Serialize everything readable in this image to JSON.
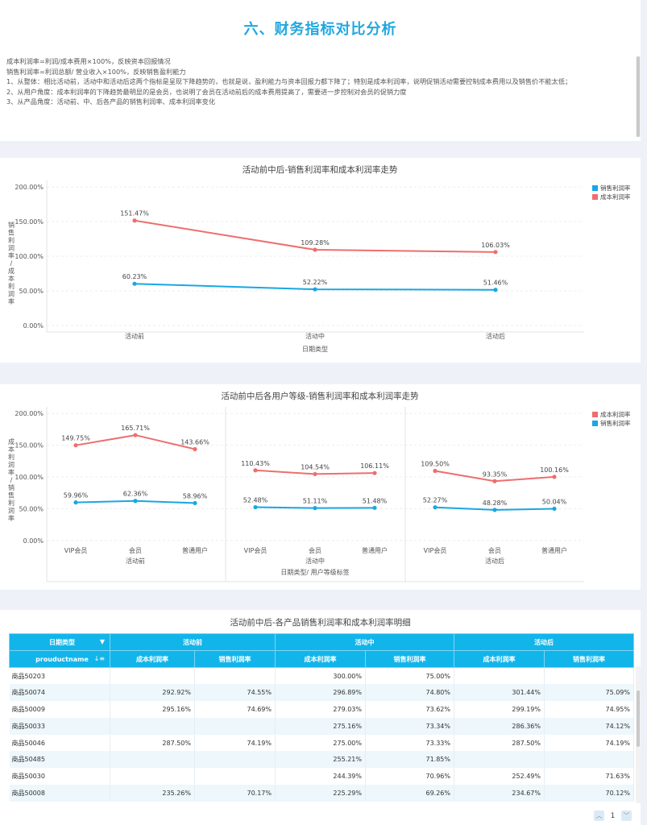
{
  "header": {
    "title": "六、财务指标对比分析",
    "notes": [
      "成本利润率=利润/成本费用×100%，反映资本回报情况",
      "销售利润率=利润总额/ 营业收入×100%，反映销售盈利能力",
      "1、从整体：相比活动前，活动中和活动后这两个指标是呈现下降趋势的，也就是说，盈利能力与资本回报力都下降了；特别是成本利润率，说明促销活动需要控制成本费用以及销售价不能太低；",
      "2、从用户角度：成本利润率的下降趋势最明显的是会员，也说明了会员在活动前后的成本费用提高了，需要进一步控制对会员的促销力度",
      "3、从产品角度：活动前、中、后各产品的销售利润率、成本利润率变化"
    ]
  },
  "colors": {
    "accent": "#21a7e0",
    "sales": "#18a7e4",
    "cost": "#ee6e6e",
    "header_bg": "#12b5ea"
  },
  "chart_data": [
    {
      "type": "line",
      "title": "活动前中后-销售利润率和成本利润率走势",
      "xlabel": "日期类型",
      "ylabel": "销售利润率/成本利润率",
      "categories": [
        "活动前",
        "活动中",
        "活动后"
      ],
      "ylim": [
        0,
        200
      ],
      "yticks": [
        "0.00%",
        "50.00%",
        "100.00%",
        "150.00%",
        "200.00%"
      ],
      "legend": [
        "销售利润率",
        "成本利润率"
      ],
      "legend_position": "top-right",
      "series": [
        {
          "name": "销售利润率",
          "values": [
            60.23,
            52.22,
            51.46
          ],
          "labels": [
            "60.23%",
            "52.22%",
            "51.46%"
          ]
        },
        {
          "name": "成本利润率",
          "values": [
            151.47,
            109.28,
            106.03
          ],
          "labels": [
            "151.47%",
            "109.28%",
            "106.03%"
          ]
        }
      ]
    },
    {
      "type": "line",
      "title": "活动前中后各用户等级-销售利润率和成本利润率走势",
      "xlabel": "日期类型/ 用户等级标签",
      "ylabel": "成本利润率/销售利润率",
      "groups": [
        "活动前",
        "活动中",
        "活动后"
      ],
      "categories": [
        "VIP会员",
        "会员",
        "普通用户"
      ],
      "ylim": [
        0,
        200
      ],
      "yticks": [
        "0.00%",
        "50.00%",
        "100.00%",
        "150.00%",
        "200.00%"
      ],
      "legend": [
        "成本利润率",
        "销售利润率"
      ],
      "legend_position": "top-right",
      "series": [
        {
          "name": "成本利润率",
          "values": [
            [
              149.75,
              165.71,
              143.66
            ],
            [
              110.43,
              104.54,
              106.11
            ],
            [
              109.5,
              93.35,
              100.16
            ]
          ],
          "labels": [
            [
              "149.75%",
              "165.71%",
              "143.66%"
            ],
            [
              "110.43%",
              "104.54%",
              "106.11%"
            ],
            [
              "109.50%",
              "93.35%",
              "100.16%"
            ]
          ]
        },
        {
          "name": "销售利润率",
          "values": [
            [
              59.96,
              62.36,
              58.96
            ],
            [
              52.48,
              51.11,
              51.48
            ],
            [
              52.27,
              48.28,
              50.04
            ]
          ],
          "labels": [
            [
              "59.96%",
              "62.36%",
              "58.96%"
            ],
            [
              "52.48%",
              "51.11%",
              "51.48%"
            ],
            [
              "52.27%",
              "48.28%",
              "50.04%"
            ]
          ]
        }
      ]
    },
    {
      "type": "table",
      "title": "活动前中后-各产品销售利润率和成本利润率明细",
      "header_left_top": "日期类型",
      "header_left_bottom": "prouductname",
      "groups": [
        "活动前",
        "活动中",
        "活动后"
      ],
      "subcolumns": [
        "成本利润率",
        "销售利润率"
      ],
      "rows": [
        {
          "name": "商品50203",
          "cells": [
            "",
            "",
            "300.00%",
            "75.00%",
            "",
            ""
          ]
        },
        {
          "name": "商品50074",
          "cells": [
            "292.92%",
            "74.55%",
            "296.89%",
            "74.80%",
            "301.44%",
            "75.09%"
          ]
        },
        {
          "name": "商品50009",
          "cells": [
            "295.16%",
            "74.69%",
            "279.03%",
            "73.62%",
            "299.19%",
            "74.95%"
          ]
        },
        {
          "name": "商品50033",
          "cells": [
            "",
            "",
            "275.16%",
            "73.34%",
            "286.36%",
            "74.12%"
          ]
        },
        {
          "name": "商品50046",
          "cells": [
            "287.50%",
            "74.19%",
            "275.00%",
            "73.33%",
            "287.50%",
            "74.19%"
          ]
        },
        {
          "name": "商品50485",
          "cells": [
            "",
            "",
            "255.21%",
            "71.85%",
            "",
            ""
          ]
        },
        {
          "name": "商品50030",
          "cells": [
            "",
            "",
            "244.39%",
            "70.96%",
            "252.49%",
            "71.63%"
          ]
        },
        {
          "name": "商品50008",
          "cells": [
            "235.26%",
            "70.17%",
            "225.29%",
            "69.26%",
            "234.67%",
            "70.12%"
          ]
        }
      ]
    }
  ],
  "pager": {
    "page": "1"
  }
}
